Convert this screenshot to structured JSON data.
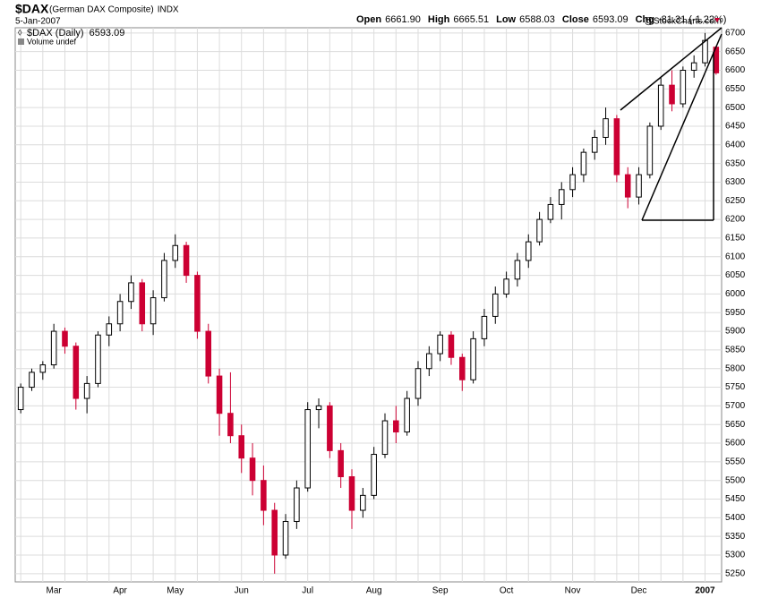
{
  "chart_data": {
    "type": "candlestick",
    "symbol": "$DAX",
    "name": "(German DAX Composite)",
    "exchange": "INDX",
    "date": "5-Jan-2007",
    "source": "@StockCharts.com",
    "quote": [
      {
        "label": "Open",
        "value": "6661.90"
      },
      {
        "label": "High",
        "value": "6665.51"
      },
      {
        "label": "Low",
        "value": "6588.03"
      },
      {
        "label": "Close",
        "value": "6593.09"
      },
      {
        "label": "Chg",
        "value": "-81.31 (-1.22%)"
      }
    ],
    "legend": [
      "$DAX (Daily)",
      "6593.09",
      "Volume undef"
    ],
    "categories": [
      null,
      null,
      null,
      "Mar",
      null,
      null,
      null,
      null,
      null,
      "Apr",
      null,
      null,
      null,
      null,
      "May",
      null,
      null,
      null,
      null,
      null,
      "Jun",
      null,
      null,
      null,
      null,
      null,
      "Jul",
      null,
      null,
      null,
      null,
      null,
      "Aug",
      null,
      null,
      null,
      null,
      null,
      "Sep",
      null,
      null,
      null,
      null,
      null,
      "Oct",
      null,
      null,
      null,
      null,
      null,
      "Nov",
      null,
      null,
      null,
      null,
      null,
      "Dec",
      null,
      null,
      null,
      null,
      null,
      "2007",
      null
    ],
    "series": [
      {
        "name": "$DAX (Daily)",
        "color": "#cc0033",
        "up_color": "#000000",
        "open": [
          5690,
          5750,
          5790,
          5810,
          5900,
          5860,
          5720,
          5760,
          5890,
          5920,
          5980,
          6030,
          5920,
          5990,
          6090,
          6130,
          6050,
          5900,
          5780,
          5680,
          5620,
          5560,
          5500,
          5420,
          5300,
          5390,
          5480,
          5690,
          5700,
          5580,
          5510,
          5420,
          5460,
          5570,
          5660,
          5630,
          5720,
          5800,
          5840,
          5890,
          5830,
          5770,
          5880,
          5940,
          6000,
          6040,
          6090,
          6140,
          6200,
          6240,
          6280,
          6320,
          6380,
          6420,
          6470,
          6320,
          6260,
          6320,
          6450,
          6560,
          6510,
          6600,
          6620,
          6661.9
        ],
        "high": [
          5760,
          5800,
          5820,
          5920,
          5910,
          5870,
          5780,
          5900,
          5940,
          6000,
          6050,
          6040,
          6010,
          6110,
          6160,
          6140,
          6060,
          5920,
          5800,
          5790,
          5650,
          5600,
          5540,
          5440,
          5410,
          5500,
          5710,
          5720,
          5710,
          5600,
          5530,
          5480,
          5590,
          5680,
          5700,
          5740,
          5820,
          5860,
          5900,
          5900,
          5840,
          5900,
          5960,
          6020,
          6060,
          6110,
          6160,
          6220,
          6260,
          6300,
          6340,
          6390,
          6440,
          6500,
          6480,
          6340,
          6340,
          6460,
          6580,
          6600,
          6610,
          6640,
          6700,
          6665.51
        ],
        "low": [
          5680,
          5740,
          5770,
          5800,
          5840,
          5690,
          5680,
          5750,
          5860,
          5900,
          5960,
          5900,
          5890,
          5980,
          6070,
          6030,
          5880,
          5760,
          5620,
          5600,
          5520,
          5460,
          5380,
          5250,
          5290,
          5370,
          5470,
          5640,
          5560,
          5480,
          5370,
          5400,
          5450,
          5560,
          5600,
          5620,
          5700,
          5780,
          5820,
          5810,
          5740,
          5760,
          5860,
          5920,
          5990,
          6020,
          6070,
          6130,
          6190,
          6200,
          6260,
          6300,
          6360,
          6400,
          6300,
          6230,
          6240,
          6310,
          6440,
          6490,
          6500,
          6580,
          6610,
          6588.03
        ],
        "close": [
          5750,
          5790,
          5810,
          5900,
          5860,
          5720,
          5760,
          5890,
          5920,
          5980,
          6030,
          5920,
          5990,
          6090,
          6130,
          6050,
          5900,
          5780,
          5680,
          5620,
          5560,
          5500,
          5420,
          5300,
          5390,
          5480,
          5690,
          5700,
          5580,
          5510,
          5420,
          5460,
          5570,
          5660,
          5630,
          5720,
          5800,
          5840,
          5890,
          5830,
          5770,
          5880,
          5940,
          6000,
          6040,
          6090,
          6140,
          6200,
          6240,
          6280,
          6320,
          6380,
          6420,
          6470,
          6320,
          6260,
          6320,
          6450,
          6560,
          6510,
          6600,
          6620,
          6680,
          6593.09
        ]
      }
    ],
    "ylim": [
      5228,
      6714
    ],
    "yticks": [
      5250,
      5300,
      5350,
      5400,
      5450,
      5500,
      5550,
      5600,
      5650,
      5700,
      5750,
      5800,
      5850,
      5900,
      5950,
      6000,
      6050,
      6100,
      6150,
      6200,
      6250,
      6300,
      6350,
      6400,
      6450,
      6500,
      6550,
      6600,
      6650,
      6700
    ],
    "grid": true
  }
}
